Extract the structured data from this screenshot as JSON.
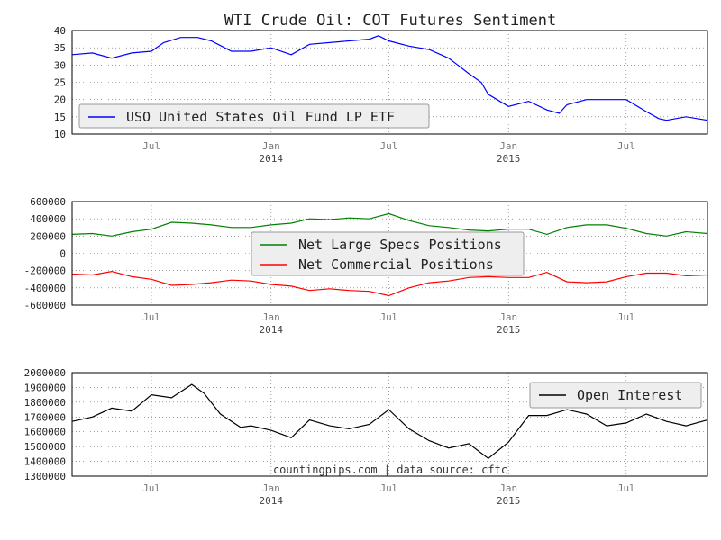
{
  "title": "WTI Crude Oil: COT Futures Sentiment",
  "credit": "countingpips.com | data source: cftc",
  "x_axis": {
    "start": "2013-03-01",
    "end": "2015-11-03",
    "ticks": [
      {
        "date": "2013-07-01",
        "label": "Jul",
        "sub": ""
      },
      {
        "date": "2014-01-01",
        "label": "Jan",
        "sub": "2014"
      },
      {
        "date": "2014-07-01",
        "label": "Jul",
        "sub": ""
      },
      {
        "date": "2015-01-01",
        "label": "Jan",
        "sub": "2015"
      },
      {
        "date": "2015-07-01",
        "label": "Jul",
        "sub": ""
      }
    ]
  },
  "chart_data": [
    {
      "type": "line",
      "title": "",
      "xlabel": "",
      "ylabel": "",
      "ylim": [
        10,
        40
      ],
      "yticks": [
        10,
        15,
        20,
        25,
        30,
        35,
        40
      ],
      "grid": true,
      "legend_position": "bottom-left",
      "series": [
        {
          "name": "USO United States Oil Fund LP ETF",
          "color": "#0000ff",
          "x": [
            "2013-03-01",
            "2013-04-01",
            "2013-05-01",
            "2013-06-01",
            "2013-07-01",
            "2013-07-20",
            "2013-08-15",
            "2013-09-10",
            "2013-10-01",
            "2013-11-01",
            "2013-12-01",
            "2014-01-01",
            "2014-02-01",
            "2014-03-01",
            "2014-04-01",
            "2014-05-01",
            "2014-06-01",
            "2014-06-15",
            "2014-07-01",
            "2014-08-01",
            "2014-09-01",
            "2014-10-01",
            "2014-10-15",
            "2014-11-01",
            "2014-11-20",
            "2014-12-01",
            "2015-01-01",
            "2015-02-01",
            "2015-03-01",
            "2015-03-20",
            "2015-04-01",
            "2015-05-01",
            "2015-06-01",
            "2015-07-01",
            "2015-08-01",
            "2015-08-20",
            "2015-09-01",
            "2015-10-01",
            "2015-11-03"
          ],
          "y": [
            33,
            33.5,
            32,
            33.5,
            34,
            36.5,
            38,
            38,
            37,
            34,
            34,
            35,
            33,
            36,
            36.5,
            37,
            37.5,
            38.5,
            37,
            35.5,
            34.5,
            32,
            30,
            27.5,
            25,
            21.5,
            18,
            19.5,
            17,
            16,
            18.5,
            20,
            20,
            20,
            16.5,
            14.5,
            14,
            15,
            14
          ]
        }
      ]
    },
    {
      "type": "line",
      "title": "",
      "xlabel": "",
      "ylabel": "",
      "ylim": [
        -600000,
        600000
      ],
      "yticks": [
        -600000,
        -400000,
        -200000,
        0,
        200000,
        400000,
        600000
      ],
      "grid": true,
      "legend_position": "center",
      "series": [
        {
          "name": "Net Large Specs Positions",
          "color": "#008000",
          "x": [
            "2013-03-01",
            "2013-04-01",
            "2013-05-01",
            "2013-06-01",
            "2013-07-01",
            "2013-08-01",
            "2013-09-01",
            "2013-10-01",
            "2013-11-01",
            "2013-12-01",
            "2014-01-01",
            "2014-02-01",
            "2014-03-01",
            "2014-04-01",
            "2014-05-01",
            "2014-06-01",
            "2014-07-01",
            "2014-08-01",
            "2014-09-01",
            "2014-10-01",
            "2014-11-01",
            "2014-12-01",
            "2015-01-01",
            "2015-02-01",
            "2015-03-01",
            "2015-04-01",
            "2015-05-01",
            "2015-06-01",
            "2015-07-01",
            "2015-08-01",
            "2015-09-01",
            "2015-10-01",
            "2015-11-03"
          ],
          "y": [
            220000,
            230000,
            200000,
            250000,
            280000,
            360000,
            350000,
            330000,
            300000,
            300000,
            330000,
            350000,
            400000,
            390000,
            410000,
            400000,
            460000,
            380000,
            320000,
            300000,
            270000,
            260000,
            280000,
            280000,
            220000,
            300000,
            330000,
            330000,
            290000,
            230000,
            200000,
            250000,
            230000
          ]
        },
        {
          "name": "Net Commercial Positions",
          "color": "#ff0000",
          "x": [
            "2013-03-01",
            "2013-04-01",
            "2013-05-01",
            "2013-06-01",
            "2013-07-01",
            "2013-08-01",
            "2013-09-01",
            "2013-10-01",
            "2013-11-01",
            "2013-12-01",
            "2014-01-01",
            "2014-02-01",
            "2014-03-01",
            "2014-04-01",
            "2014-05-01",
            "2014-06-01",
            "2014-07-01",
            "2014-08-01",
            "2014-09-01",
            "2014-10-01",
            "2014-11-01",
            "2014-12-01",
            "2015-01-01",
            "2015-02-01",
            "2015-03-01",
            "2015-04-01",
            "2015-05-01",
            "2015-06-01",
            "2015-07-01",
            "2015-08-01",
            "2015-09-01",
            "2015-10-01",
            "2015-11-03"
          ],
          "y": [
            -240000,
            -250000,
            -210000,
            -270000,
            -300000,
            -370000,
            -360000,
            -340000,
            -310000,
            -320000,
            -360000,
            -380000,
            -430000,
            -410000,
            -430000,
            -440000,
            -490000,
            -400000,
            -340000,
            -320000,
            -280000,
            -270000,
            -280000,
            -280000,
            -220000,
            -330000,
            -340000,
            -330000,
            -270000,
            -230000,
            -230000,
            -260000,
            -250000
          ]
        }
      ]
    },
    {
      "type": "line",
      "title": "",
      "xlabel": "",
      "ylabel": "",
      "ylim": [
        1300000,
        2000000
      ],
      "yticks": [
        1300000,
        1400000,
        1500000,
        1600000,
        1700000,
        1800000,
        1900000,
        2000000
      ],
      "grid": true,
      "legend_position": "top-right",
      "series": [
        {
          "name": "Open Interest",
          "color": "#000000",
          "x": [
            "2013-03-01",
            "2013-04-01",
            "2013-05-01",
            "2013-06-01",
            "2013-07-01",
            "2013-08-01",
            "2013-09-01",
            "2013-09-20",
            "2013-10-15",
            "2013-11-15",
            "2013-12-01",
            "2014-01-01",
            "2014-02-01",
            "2014-03-01",
            "2014-04-01",
            "2014-05-01",
            "2014-06-01",
            "2014-07-01",
            "2014-08-01",
            "2014-09-01",
            "2014-10-01",
            "2014-11-01",
            "2014-12-01",
            "2015-01-01",
            "2015-02-01",
            "2015-03-01",
            "2015-04-01",
            "2015-05-01",
            "2015-06-01",
            "2015-07-01",
            "2015-08-01",
            "2015-09-01",
            "2015-10-01",
            "2015-11-03"
          ],
          "y": [
            1670000,
            1700000,
            1760000,
            1740000,
            1850000,
            1830000,
            1920000,
            1860000,
            1720000,
            1630000,
            1640000,
            1610000,
            1560000,
            1680000,
            1640000,
            1620000,
            1650000,
            1750000,
            1620000,
            1540000,
            1490000,
            1520000,
            1420000,
            1530000,
            1710000,
            1710000,
            1750000,
            1720000,
            1640000,
            1660000,
            1720000,
            1670000,
            1640000,
            1680000
          ]
        }
      ]
    }
  ]
}
